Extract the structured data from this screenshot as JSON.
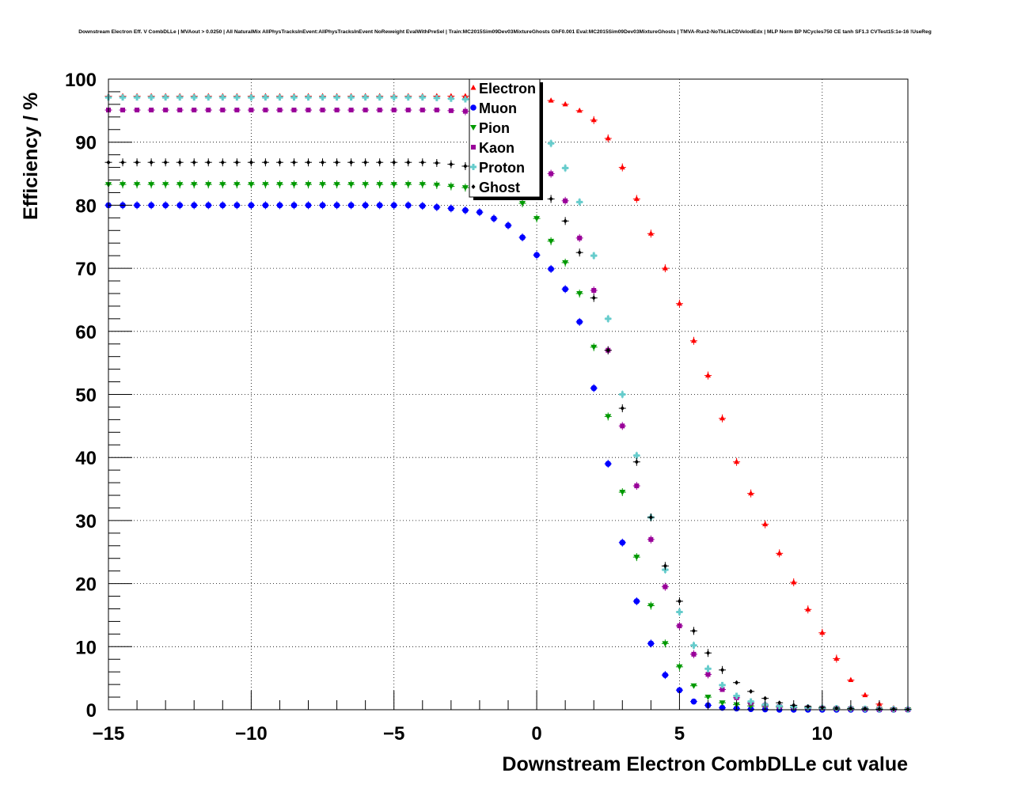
{
  "chart_data": {
    "type": "scatter",
    "title": "Downstream Electron Eff. V CombDLLe | MVAout > 0.0250 | All NaturalMix AllPhysTracksInEvent:AllPhysTracksInEvent NoReweight EvalWithPreSel | Train:MC2015Sim09Dev03MixtureGhosts GhF0.001 Eval:MC2015Sim09Dev03MixtureGhosts | TMVA-Run2-NoTkLikCDVelodEdx | MLP Norm BP NCycles750 CE tanh SF1.3 CVTest15:1e-16 !UseReg",
    "xlabel": "Downstream Electron CombDLLe cut value",
    "ylabel": "Efficiency / %",
    "xlim": [
      -15,
      13
    ],
    "ylim": [
      0,
      100
    ],
    "xticks": [
      -15,
      -10,
      -5,
      0,
      5,
      10
    ],
    "xtick_labels": [
      "−15",
      "−10",
      "−5",
      "0",
      "5",
      "10"
    ],
    "yticks": [
      0,
      10,
      20,
      30,
      40,
      50,
      60,
      70,
      80,
      90,
      100
    ],
    "ytick_labels": [
      "0",
      "10",
      "20",
      "30",
      "40",
      "50",
      "60",
      "70",
      "80",
      "90",
      "100"
    ],
    "grid": true,
    "legend_position": "top-center",
    "x": [
      -15,
      -14.5,
      -14,
      -13.5,
      -13,
      -12.5,
      -12,
      -11.5,
      -11,
      -10.5,
      -10,
      -9.5,
      -9,
      -8.5,
      -8,
      -7.5,
      -7,
      -6.5,
      -6,
      -5.5,
      -5,
      -4.5,
      -4,
      -3.5,
      -3,
      -2.5,
      -2,
      -1.5,
      -1,
      -0.5,
      0,
      0.5,
      1,
      1.5,
      2,
      2.5,
      3,
      3.5,
      4,
      4.5,
      5,
      5.5,
      6,
      6.5,
      7,
      7.5,
      8,
      8.5,
      9,
      9.5,
      10,
      10.5,
      11,
      11.5,
      12,
      12.5,
      13
    ],
    "series": [
      {
        "name": "Electron",
        "color": "#ff0000",
        "marker": "triangle-up",
        "values": [
          97.3,
          97.3,
          97.3,
          97.3,
          97.3,
          97.3,
          97.3,
          97.3,
          97.3,
          97.3,
          97.3,
          97.3,
          97.3,
          97.3,
          97.3,
          97.3,
          97.3,
          97.3,
          97.3,
          97.3,
          97.3,
          97.3,
          97.3,
          97.3,
          97.3,
          97.3,
          97.3,
          97.3,
          97.3,
          97.2,
          97,
          96.6,
          96,
          95,
          93.5,
          90.6,
          86,
          81,
          75.5,
          70,
          64.4,
          58.5,
          53,
          46.2,
          39.3,
          34.3,
          29.4,
          24.8,
          20.2,
          15.9,
          12.2,
          8.1,
          4.7,
          2.3,
          0.9,
          0.25,
          0.1
        ]
      },
      {
        "name": "Muon",
        "color": "#0000ff",
        "marker": "circle",
        "values": [
          80,
          80,
          80,
          80,
          80,
          80,
          80,
          80,
          80,
          80,
          80,
          80,
          80,
          80,
          80,
          80,
          80,
          80,
          80,
          80,
          80,
          80,
          79.9,
          79.7,
          79.5,
          79.2,
          78.9,
          77.9,
          76.8,
          74.9,
          72.1,
          69.9,
          66.7,
          61.5,
          51,
          39,
          26.5,
          17.2,
          10.5,
          5.5,
          3.1,
          1.3,
          0.7,
          0.3,
          0.2,
          0.1,
          0.05,
          0,
          0,
          0,
          0,
          0,
          0,
          0,
          0,
          0,
          0
        ]
      },
      {
        "name": "Pion",
        "color": "#009900",
        "marker": "triangle-down",
        "values": [
          83.3,
          83.3,
          83.3,
          83.3,
          83.3,
          83.3,
          83.3,
          83.3,
          83.3,
          83.3,
          83.3,
          83.3,
          83.3,
          83.3,
          83.3,
          83.3,
          83.3,
          83.3,
          83.3,
          83.3,
          83.3,
          83.3,
          83.3,
          83.2,
          83,
          82.8,
          82.5,
          82.2,
          81.7,
          80.3,
          77.9,
          74.3,
          70.9,
          66,
          57.5,
          46.5,
          34.5,
          24.2,
          16.5,
          10.5,
          6.8,
          3.8,
          2,
          1.1,
          0.8,
          0.6,
          0.5,
          0.4,
          0.3,
          0.25,
          0.2,
          0.15,
          0.1,
          0.1,
          0.05,
          0,
          0
        ]
      },
      {
        "name": "Kaon",
        "color": "#990099",
        "marker": "square",
        "values": [
          95.1,
          95.1,
          95.1,
          95.1,
          95.1,
          95.1,
          95.1,
          95.1,
          95.1,
          95.1,
          95.1,
          95.1,
          95.1,
          95.1,
          95.1,
          95.1,
          95.1,
          95.1,
          95.1,
          95.1,
          95.1,
          95.1,
          95.1,
          95.1,
          95,
          94.9,
          94.7,
          94.3,
          93.5,
          92.3,
          89.5,
          85,
          80.7,
          74.8,
          66.5,
          57,
          45,
          35.5,
          27,
          19.5,
          13.3,
          8.8,
          5.6,
          3.2,
          1.9,
          1.05,
          0.7,
          0.5,
          0.4,
          0.3,
          0.25,
          0.2,
          0.15,
          0.1,
          0.05,
          0,
          0
        ]
      },
      {
        "name": "Proton",
        "color": "#66cccc",
        "marker": "cross",
        "values": [
          97.1,
          97.1,
          97.1,
          97.1,
          97.1,
          97.1,
          97.1,
          97.1,
          97.1,
          97.1,
          97.1,
          97.1,
          97.1,
          97.1,
          97.1,
          97.1,
          97.1,
          97.1,
          97.1,
          97.1,
          97.1,
          97.1,
          97.1,
          97,
          96.9,
          96.8,
          96.6,
          96.3,
          95.6,
          94.5,
          92.5,
          89.8,
          85.9,
          80.5,
          72,
          62,
          50,
          40.3,
          30.5,
          22.2,
          15.5,
          10.2,
          6.5,
          3.9,
          2.2,
          1.3,
          0.8,
          0.6,
          0.45,
          0.35,
          0.3,
          0.25,
          0.2,
          0.15,
          0.1,
          0.1,
          0.05
        ]
      },
      {
        "name": "Ghost",
        "color": "#000000",
        "marker": "diamond",
        "values": [
          86.8,
          86.8,
          86.8,
          86.8,
          86.8,
          86.8,
          86.8,
          86.8,
          86.8,
          86.8,
          86.8,
          86.8,
          86.8,
          86.8,
          86.8,
          86.8,
          86.8,
          86.8,
          86.8,
          86.8,
          86.8,
          86.8,
          86.8,
          86.7,
          86.5,
          86.2,
          85.9,
          85.3,
          84.6,
          83.7,
          82.5,
          81,
          77.5,
          72.5,
          65.3,
          57,
          47.8,
          39.3,
          30.5,
          22.8,
          17.2,
          12.5,
          9,
          6.3,
          4.3,
          2.9,
          1.8,
          1.1,
          0.7,
          0.5,
          0.35,
          0.25,
          0.2,
          0.15,
          0.1,
          0.1,
          0.05
        ]
      }
    ]
  }
}
